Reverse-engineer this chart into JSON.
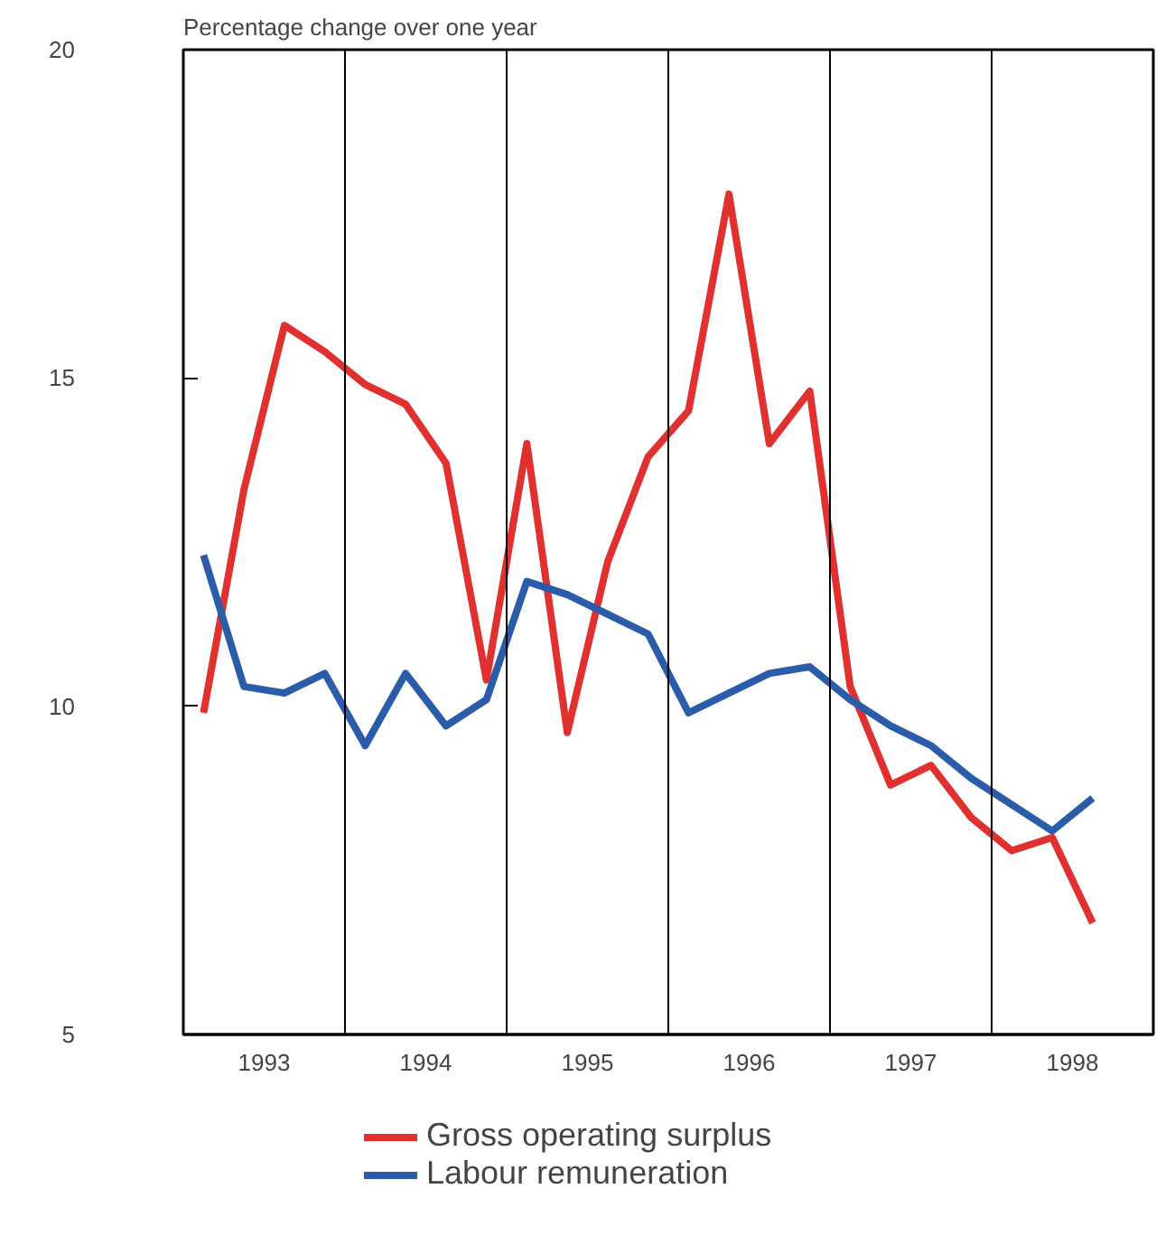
{
  "chart_data": {
    "type": "line",
    "ylabel": "Percentage change over one year",
    "x": [
      1993.125,
      1993.375,
      1993.625,
      1993.875,
      1994.125,
      1994.375,
      1994.625,
      1994.875,
      1995.125,
      1995.375,
      1995.625,
      1995.875,
      1996.125,
      1996.375,
      1996.625,
      1996.875,
      1997.125,
      1997.375,
      1997.625,
      1997.875,
      1998.125,
      1998.375,
      1998.625
    ],
    "series": [
      {
        "name": "Gross operating surplus",
        "color": "#e03030",
        "values": [
          9.9,
          13.3,
          15.8,
          15.4,
          14.9,
          14.6,
          13.7,
          10.4,
          14.0,
          9.6,
          12.2,
          13.8,
          14.5,
          17.8,
          14.0,
          14.8,
          10.3,
          8.8,
          9.1,
          8.3,
          7.8,
          8.0,
          6.7
        ]
      },
      {
        "name": "Labour remuneration",
        "color": "#2a5caa",
        "values": [
          12.3,
          10.3,
          10.2,
          10.5,
          9.4,
          10.5,
          9.7,
          10.1,
          11.9,
          11.7,
          11.4,
          11.1,
          9.9,
          10.2,
          10.5,
          10.6,
          10.1,
          9.7,
          9.4,
          8.9,
          8.5,
          8.1,
          8.6
        ]
      }
    ],
    "xlim": [
      1993,
      1999
    ],
    "ylim": [
      5,
      20
    ],
    "xticks": [
      {
        "value": 1993.5,
        "label": "1993"
      },
      {
        "value": 1994.5,
        "label": "1994"
      },
      {
        "value": 1995.5,
        "label": "1995"
      },
      {
        "value": 1996.5,
        "label": "1996"
      },
      {
        "value": 1997.5,
        "label": "1997"
      },
      {
        "value": 1998.5,
        "label": "1998"
      }
    ],
    "yticks": [
      5,
      10,
      15,
      20
    ],
    "ref_lines": [
      {
        "axis": "x",
        "value": 1994,
        "color": "#000000"
      },
      {
        "axis": "x",
        "value": 1995,
        "color": "#000000"
      },
      {
        "axis": "x",
        "value": 1996,
        "color": "#000000"
      },
      {
        "axis": "x",
        "value": 1997,
        "color": "#000000"
      },
      {
        "axis": "x",
        "value": 1998,
        "color": "#000000"
      }
    ],
    "grid": false,
    "legend": "bottom",
    "marker": "none",
    "line_style": "solid"
  }
}
